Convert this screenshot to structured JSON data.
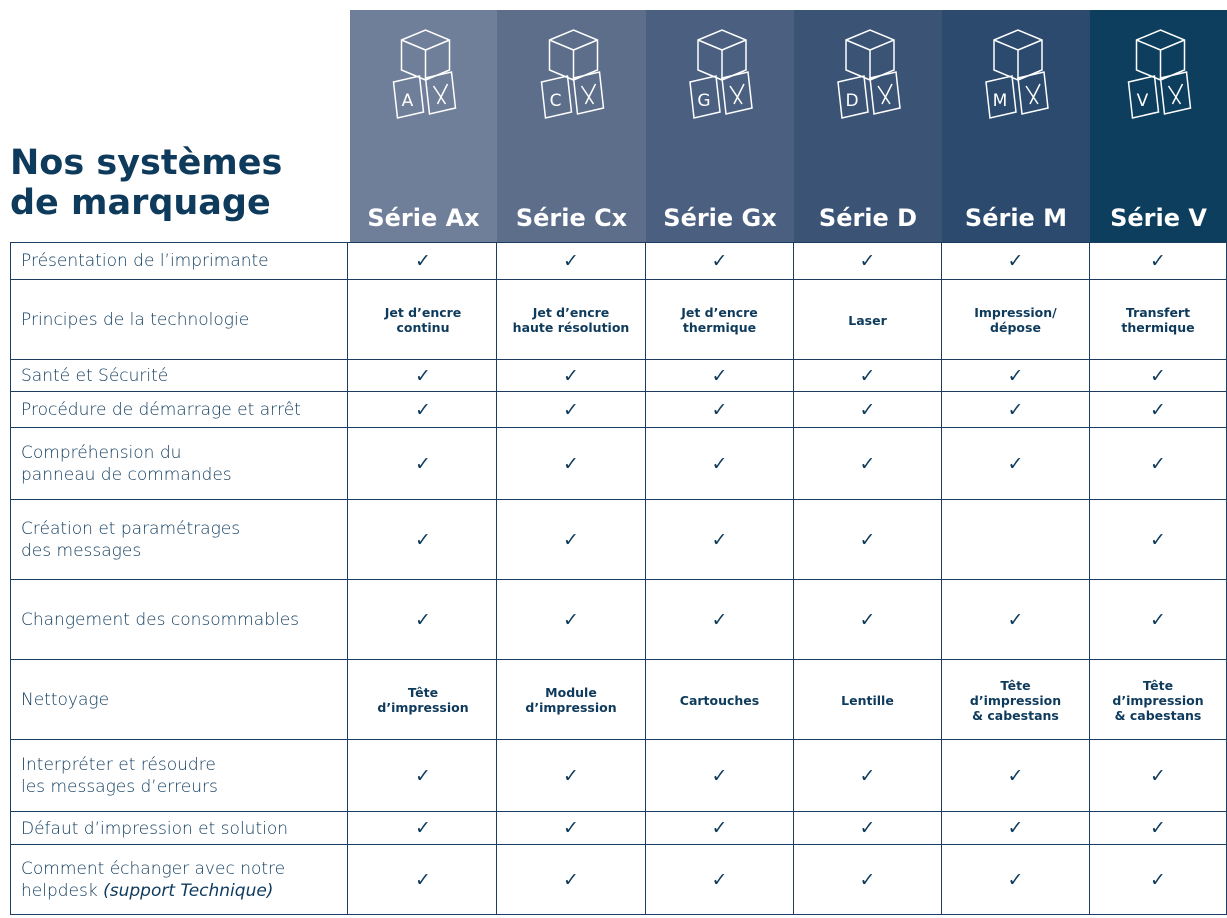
{
  "header": {
    "title": "Nos systèmes\nde marquage"
  },
  "columns": [
    {
      "name": "Série Ax",
      "icon_letter": "A"
    },
    {
      "name": "Série Cx",
      "icon_letter": "C"
    },
    {
      "name": "Série Gx",
      "icon_letter": "G"
    },
    {
      "name": "Série D",
      "icon_letter": "D"
    },
    {
      "name": "Série M",
      "icon_letter": "M"
    },
    {
      "name": "Série V",
      "icon_letter": "V"
    }
  ],
  "rows": [
    {
      "label": "Présentation de l’imprimante",
      "cells": [
        "✓",
        "✓",
        "✓",
        "✓",
        "✓",
        "✓"
      ]
    },
    {
      "label": "Principes de la technologie",
      "cells": [
        "Jet d’encre\ncontinu",
        "Jet d’encre\nhaute résolution",
        "Jet d’encre\nthermique",
        "Laser",
        "Impression/\ndépose",
        "Transfert\nthermique"
      ]
    },
    {
      "label": "Santé et Sécurité",
      "cells": [
        "✓",
        "✓",
        "✓",
        "✓",
        "✓",
        "✓"
      ]
    },
    {
      "label": "Procédure de démarrage et arrêt",
      "cells": [
        "✓",
        "✓",
        "✓",
        "✓",
        "✓",
        "✓"
      ]
    },
    {
      "label": "Compréhension du\npanneau de commandes",
      "cells": [
        "✓",
        "✓",
        "✓",
        "✓",
        "✓",
        "✓"
      ]
    },
    {
      "label": "Création et paramétrages\ndes messages",
      "cells": [
        "✓",
        "✓",
        "✓",
        "✓",
        null,
        "✓"
      ]
    },
    {
      "label": "Changement des consommables",
      "cells": [
        "✓",
        "✓",
        "✓",
        "✓",
        "✓",
        "✓"
      ]
    },
    {
      "label": "Nettoyage",
      "cells": [
        "Tête\nd’impression",
        "Module\nd’impression",
        "Cartouches",
        "Lentille",
        "Tête\nd’impression\n& cabestans",
        "Tête\nd’impression\n& cabestans"
      ]
    },
    {
      "label": "Interpréter et résoudre\nles messages d’erreurs",
      "cells": [
        "✓",
        "✓",
        "✓",
        "✓",
        "✓",
        "✓"
      ]
    },
    {
      "label": "Défaut d’impression et solution",
      "cells": [
        "✓",
        "✓",
        "✓",
        "✓",
        "✓",
        "✓"
      ]
    },
    {
      "label": "Comment échanger avec notre\nhelpdesk",
      "label_note": "(support Technique)",
      "cells": [
        "✓",
        "✓",
        "✓",
        "✓",
        "✓",
        "✓"
      ]
    }
  ]
}
